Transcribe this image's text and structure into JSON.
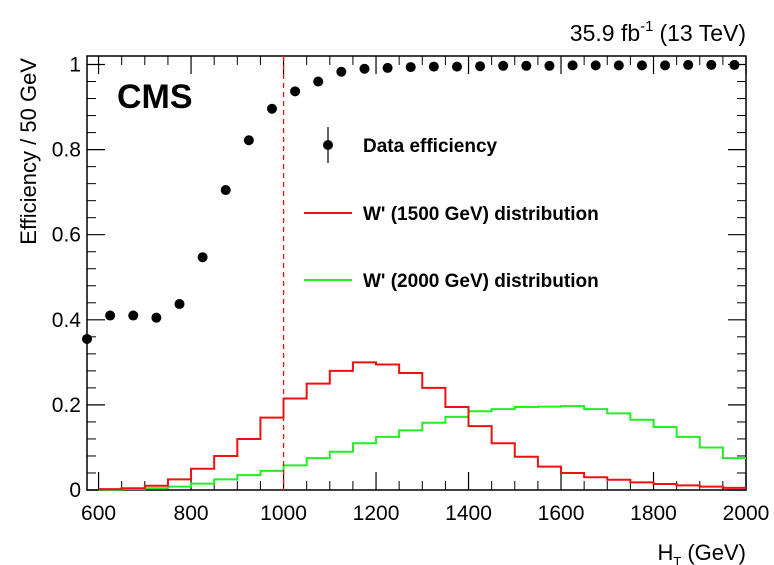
{
  "chart_data": {
    "type": "scatter",
    "lumi": "35.9 fb",
    "lumi_exp": "-1",
    "energy": "(13 TeV)",
    "experiment": "CMS",
    "xlabel_main": "H",
    "xlabel_sub": "T",
    "xlabel_unit": "(GeV)",
    "ylabel": "Efficiency / 50 GeV",
    "xlim": [
      575,
      2000
    ],
    "ylim": [
      0,
      1.02
    ],
    "x_ticks": [
      600,
      800,
      1000,
      1200,
      1400,
      1600,
      1800,
      2000
    ],
    "x_tick_labels": [
      "600",
      "800",
      "1000",
      "1200",
      "1400",
      "1600",
      "1800",
      "2000"
    ],
    "y_ticks": [
      0,
      0.2,
      0.4,
      0.6,
      0.8,
      1
    ],
    "y_tick_labels": [
      "0",
      "0.2",
      "0.4",
      "0.6",
      "0.8",
      "1"
    ],
    "x_minor_step": 50,
    "y_minor_step": 0.04,
    "cut_line": 1000,
    "colors": {
      "data": "#000000",
      "w1500": "#ee1111",
      "w2000": "#22ee22",
      "cut": "#ee1111"
    },
    "legend_position": "top-right",
    "legend": [
      {
        "series": "data",
        "label": "Data efficiency"
      },
      {
        "series": "w1500",
        "label": "W' (1500 GeV) distribution"
      },
      {
        "series": "w2000",
        "label": "W' (2000 GeV) distribution"
      }
    ],
    "data_points": {
      "x": [
        575,
        625,
        675,
        725,
        775,
        825,
        875,
        925,
        975,
        1025,
        1075,
        1125,
        1175,
        1225,
        1275,
        1325,
        1375,
        1425,
        1475,
        1525,
        1575,
        1625,
        1675,
        1725,
        1775,
        1825,
        1875,
        1925,
        1975
      ],
      "y": [
        0.355,
        0.41,
        0.41,
        0.405,
        0.437,
        0.547,
        0.705,
        0.822,
        0.896,
        0.937,
        0.96,
        0.983,
        0.99,
        0.992,
        0.994,
        0.995,
        0.995,
        0.996,
        0.997,
        0.997,
        0.997,
        0.998,
        0.998,
        0.998,
        0.998,
        0.998,
        0.999,
        0.999,
        0.999
      ],
      "yerr": [
        0.012,
        0.008,
        0.006,
        0.006,
        0.006,
        0.006,
        0.005,
        0.004,
        0.004,
        0.003,
        0.003,
        0.002,
        0.002,
        0.002,
        0.002,
        0.002,
        0.002,
        0.002,
        0.002,
        0.002,
        0.002,
        0.002,
        0.002,
        0.002,
        0.002,
        0.002,
        0.002,
        0.002,
        0.002
      ]
    },
    "w1500_hist": {
      "bin_width": 50,
      "bin_low": [
        600,
        650,
        700,
        750,
        800,
        850,
        900,
        950,
        1000,
        1050,
        1100,
        1150,
        1200,
        1250,
        1300,
        1350,
        1400,
        1450,
        1500,
        1550,
        1600,
        1650,
        1700,
        1750,
        1800,
        1850,
        1900,
        1950
      ],
      "values": [
        0.002,
        0.004,
        0.01,
        0.025,
        0.05,
        0.08,
        0.12,
        0.17,
        0.215,
        0.25,
        0.28,
        0.3,
        0.295,
        0.275,
        0.24,
        0.195,
        0.15,
        0.11,
        0.078,
        0.055,
        0.04,
        0.03,
        0.024,
        0.018,
        0.014,
        0.011,
        0.008,
        0.005
      ]
    },
    "w2000_hist": {
      "bin_width": 50,
      "bin_low": [
        600,
        650,
        700,
        750,
        800,
        850,
        900,
        950,
        1000,
        1050,
        1100,
        1150,
        1200,
        1250,
        1300,
        1350,
        1400,
        1450,
        1500,
        1550,
        1600,
        1650,
        1700,
        1750,
        1800,
        1850,
        1900,
        1950
      ],
      "values": [
        0.001,
        0.002,
        0.004,
        0.008,
        0.015,
        0.025,
        0.035,
        0.045,
        0.058,
        0.075,
        0.09,
        0.11,
        0.125,
        0.14,
        0.158,
        0.172,
        0.185,
        0.19,
        0.195,
        0.196,
        0.197,
        0.19,
        0.18,
        0.165,
        0.148,
        0.125,
        0.1,
        0.075
      ]
    }
  }
}
